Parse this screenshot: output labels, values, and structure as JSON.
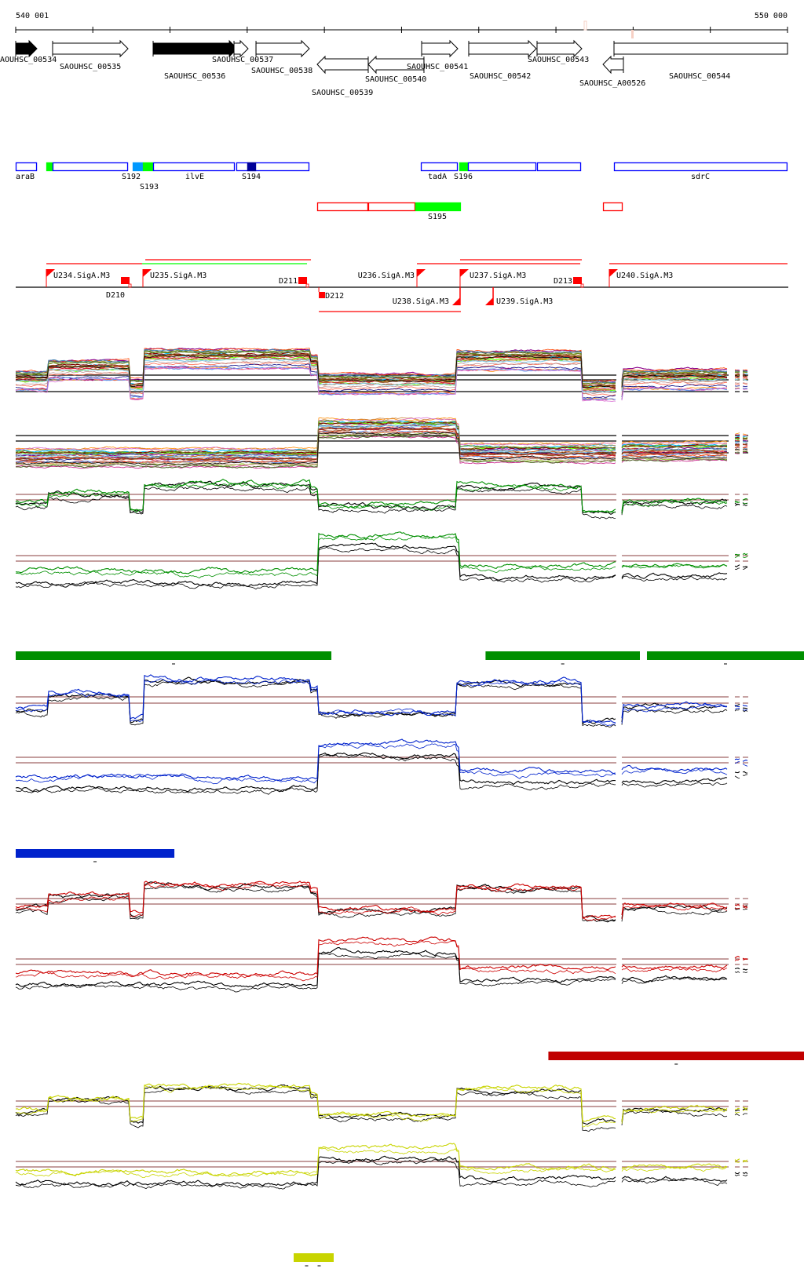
{
  "ruler": {
    "start_label": "540 001",
    "end_label": "550 000",
    "start": 540001,
    "end": 550000,
    "tick_step": 1000
  },
  "genes": [
    {
      "name": "AOUHSC_00534",
      "start": 540001,
      "end": 540276,
      "strand": "+",
      "filled": true
    },
    {
      "name": "SAOUHSC_00535",
      "start": 540479,
      "end": 541456,
      "strand": "+",
      "filled": false
    },
    {
      "name": "SAOUHSC_00536",
      "start": 541781,
      "end": 542870,
      "strand": "+",
      "filled": true
    },
    {
      "name": "SAOUHSC_00537",
      "start": 542829,
      "end": 543012,
      "strand": "+",
      "filled": false
    },
    {
      "name": "SAOUHSC_00538",
      "start": 543114,
      "end": 543805,
      "strand": "+",
      "filled": false
    },
    {
      "name": "SAOUHSC_00539",
      "start": 543907,
      "end": 544568,
      "strand": "-",
      "filled": false
    },
    {
      "name": "SAOUHSC_00540",
      "start": 544568,
      "end": 545290,
      "strand": "-",
      "filled": false
    },
    {
      "name": "SAOUHSC_00541",
      "start": 545260,
      "end": 545728,
      "strand": "+",
      "filled": false
    },
    {
      "name": "SAOUHSC_00542",
      "start": 545870,
      "end": 546745,
      "strand": "+",
      "filled": false
    },
    {
      "name": "SAOUHSC_00543",
      "start": 546755,
      "end": 547335,
      "strand": "+",
      "filled": false
    },
    {
      "name": "SAOUHSC_A00526",
      "start": 547610,
      "end": 547874,
      "strand": "-",
      "filled": false
    },
    {
      "name": "SAOUHSC_00544",
      "start": 547752,
      "end": 550000,
      "strand": "+",
      "filled": false,
      "open_end": true
    }
  ],
  "features": [
    {
      "label": "araB",
      "start": 540001,
      "end": 540276,
      "color": "#0000ff",
      "filled": false
    },
    {
      "label": "",
      "start": 540398,
      "end": 540479,
      "color": "#00ff00",
      "filled": true
    },
    {
      "label": "",
      "start": 540479,
      "end": 541456,
      "color": "#0000ff",
      "filled": false
    },
    {
      "label": "S192",
      "start": 541517,
      "end": 541649,
      "color": "#0099ff",
      "filled": true
    },
    {
      "label": "S193",
      "start": 541649,
      "end": 541781,
      "color": "#00ff00",
      "filled": true
    },
    {
      "label": "ilvE",
      "start": 541781,
      "end": 542839,
      "color": "#0000ff",
      "filled": false
    },
    {
      "label": "",
      "start": 542859,
      "end": 543805,
      "color": "#0000ff",
      "filled": false
    },
    {
      "label": "S194",
      "start": 543001,
      "end": 543114,
      "color": "#000099",
      "filled": true
    },
    {
      "label": "tadA",
      "start": 545250,
      "end": 545728,
      "color": "#0000ff",
      "filled": false
    },
    {
      "label": "S196",
      "start": 545748,
      "end": 545860,
      "color": "#00ff00",
      "filled": true
    },
    {
      "label": "",
      "start": 545860,
      "end": 546745,
      "color": "#0000ff",
      "filled": false
    },
    {
      "label": "",
      "start": 546755,
      "end": 547325,
      "color": "#0000ff",
      "filled": false
    },
    {
      "label": "sdrC",
      "start": 547752,
      "end": 549999,
      "color": "#0000ff",
      "filled": false
    }
  ],
  "features2": [
    {
      "label": "",
      "start": 543907,
      "end": 544568,
      "color": "#ff0000",
      "filled": false
    },
    {
      "label": "",
      "start": 544568,
      "end": 545178,
      "color": "#ff0000",
      "filled": false
    },
    {
      "label": "S195",
      "start": 545178,
      "end": 545768,
      "color": "#00ff00",
      "filled": true
    },
    {
      "label": "",
      "start": 547610,
      "end": 547864,
      "color": "#ff0000",
      "filled": false
    }
  ],
  "transcripts": [
    {
      "start": 541680,
      "end": 543826,
      "color": "#ff0000",
      "row": 0
    },
    {
      "start": 545758,
      "end": 547335,
      "color": "#ff0000",
      "row": 0
    },
    {
      "start": 540398,
      "end": 541639,
      "color": "#ff0000",
      "row": 1
    },
    {
      "start": 541639,
      "end": 543775,
      "color": "#00ff00",
      "row": 1
    },
    {
      "start": 545199,
      "end": 547315,
      "color": "#ff0000",
      "row": 1
    },
    {
      "start": 547691,
      "end": 550000,
      "color": "#ff0000",
      "row": 1
    },
    {
      "start": 543928,
      "end": 545768,
      "color": "#ff0000",
      "row": 2
    }
  ],
  "promoters": [
    {
      "label": "U234.SigA.M3",
      "pos": 540398,
      "strand": "+"
    },
    {
      "label": "U235.SigA.M3",
      "pos": 541649,
      "strand": "+"
    },
    {
      "label": "U236.SigA.M3",
      "pos": 545199,
      "strand": "+"
    },
    {
      "label": "U237.SigA.M3",
      "pos": 545758,
      "strand": "+"
    },
    {
      "label": "U240.SigA.M3",
      "pos": 547691,
      "strand": "+"
    },
    {
      "label": "U238.SigA.M3",
      "pos": 545758,
      "strand": "-"
    },
    {
      "label": "U239.SigA.M3",
      "pos": 546186,
      "strand": "-"
    }
  ],
  "terminators": [
    {
      "label": "D210",
      "pos": 541476,
      "strand": "+"
    },
    {
      "label": "D211",
      "pos": 543775,
      "strand": "+"
    },
    {
      "label": "D212",
      "pos": 543928,
      "strand": "-"
    },
    {
      "label": "D213",
      "pos": 547335,
      "strand": "+"
    }
  ],
  "condition_bars": [
    {
      "color": "#008f00",
      "segments": [
        [
          540001,
          543877
        ],
        [
          546088,
          547874
        ],
        [
          548179,
          550000
        ]
      ],
      "tick_marks": 3
    },
    {
      "color": "#0022cc",
      "segments": [
        [
          540001,
          541843
        ]
      ],
      "tick_marks": 1
    },
    {
      "color": "#c00000",
      "segments": [
        [
          546902,
          550000
        ]
      ],
      "tick_marks": 1
    },
    {
      "color": "#c8d400",
      "segments": [
        [
          543602,
          543724
        ],
        [
          543744,
          543907
        ]
      ],
      "tick_marks": 2
    }
  ],
  "chart_data": {
    "type": "line",
    "x_range": [
      540001,
      550000
    ],
    "covered_segments": [
      [
        540001,
        547783
      ],
      [
        547854,
        549237
      ],
      [
        549318,
        549380
      ],
      [
        549420,
        549491
      ]
    ],
    "profiles": {
      "A": [
        [
          540001,
          -0.4
        ],
        [
          540408,
          0.3
        ],
        [
          541476,
          -0.9
        ],
        [
          541659,
          1.0
        ],
        [
          543816,
          0.6
        ],
        [
          543918,
          -0.6
        ],
        [
          545698,
          0.9
        ],
        [
          547325,
          -1.0
        ],
        [
          547854,
          -0.3
        ],
        [
          549237,
          -0.3
        ]
      ],
      "B": [
        [
          540001,
          -0.9
        ],
        [
          543918,
          -0.3
        ],
        [
          543919,
          1.0
        ],
        [
          545698,
          0.7
        ],
        [
          545749,
          -0.6
        ],
        [
          547854,
          -0.5
        ],
        [
          549237,
          0.0
        ]
      ]
    },
    "tracks": [
      {
        "id": "multi-1",
        "profile": "A",
        "series_colors": [
          "#8b008b",
          "#ff6347",
          "#d2691e",
          "#808000",
          "#66ff00",
          "#000080",
          "#00bfff",
          "#c71585",
          "#a0522d",
          "#ff8c00",
          "#9acd32",
          "#b22222",
          "#6495ed",
          "#cd853f",
          "#800000",
          "#da70d6",
          "#556b2f",
          "#ff4500",
          "#4682b4",
          "#bc8f8f",
          "#6b8e23",
          "#dc143c",
          "#87ceeb",
          "#d2b48c",
          "#8b4513",
          "#000000"
        ],
        "reference_color": "#000000"
      },
      {
        "id": "multi-2",
        "profile": "B",
        "series_colors": [
          "#8b008b",
          "#ff6347",
          "#d2691e",
          "#808000",
          "#66ff00",
          "#000080",
          "#00bfff",
          "#c71585",
          "#a0522d",
          "#ff8c00",
          "#9acd32",
          "#b22222",
          "#6495ed",
          "#cd853f",
          "#800000",
          "#da70d6",
          "#556b2f",
          "#ff4500",
          "#4682b4",
          "#bc8f8f",
          "#6b8e23",
          "#dc143c",
          "#87ceeb",
          "#d2b48c",
          "#8b4513",
          "#000000"
        ],
        "reference_color": "#000000"
      },
      {
        "id": "green-1",
        "profile": "A",
        "series_colors": [
          "#000000",
          "#000000",
          "#008f00",
          "#008f00"
        ],
        "reference_color": "#a06464"
      },
      {
        "id": "green-2",
        "profile": "B",
        "series_colors": [
          "#000000",
          "#000000",
          "#008f00",
          "#008f00"
        ],
        "reference_color": "#a06464"
      },
      {
        "id": "blue-1",
        "profile": "A",
        "series_colors": [
          "#000000",
          "#000000",
          "#0022cc",
          "#0022cc"
        ],
        "reference_color": "#a06464"
      },
      {
        "id": "blue-2",
        "profile": "B",
        "series_colors": [
          "#000000",
          "#000000",
          "#0022cc",
          "#0022cc"
        ],
        "reference_color": "#a06464"
      },
      {
        "id": "red-1",
        "profile": "A",
        "series_colors": [
          "#000000",
          "#000000",
          "#cc0000",
          "#cc0000"
        ],
        "reference_color": "#a06464"
      },
      {
        "id": "red-2",
        "profile": "B",
        "series_colors": [
          "#000000",
          "#000000",
          "#cc0000",
          "#cc0000"
        ],
        "reference_color": "#a06464"
      },
      {
        "id": "yellow-1",
        "profile": "A",
        "series_colors": [
          "#000000",
          "#000000",
          "#c8d400",
          "#c8d400"
        ],
        "reference_color": "#a06464"
      },
      {
        "id": "yellow-2",
        "profile": "B",
        "series_colors": [
          "#000000",
          "#000000",
          "#c8d400",
          "#c8d400"
        ],
        "reference_color": "#a06464"
      }
    ]
  }
}
